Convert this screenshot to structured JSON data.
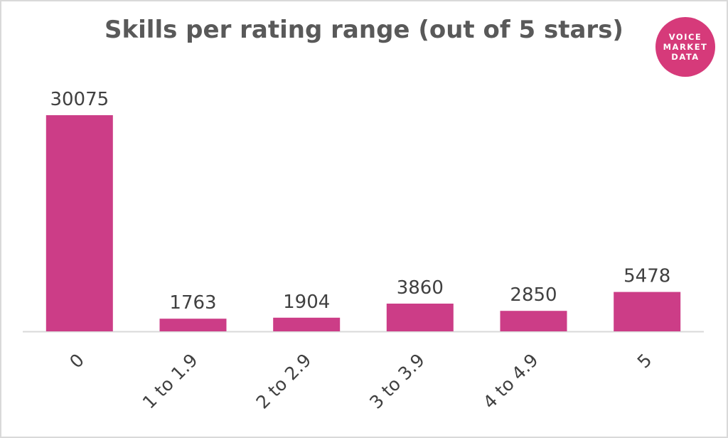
{
  "logo": {
    "line1": "VOICE",
    "line2": "MARKET",
    "line3": "DATA",
    "color": "#d63a7a"
  },
  "chart_data": {
    "type": "bar",
    "title": "Skills per rating range (out of 5 stars)",
    "categories": [
      "0",
      "1 to 1.9",
      "2 to 2.9",
      "3 to 3.9",
      "4 to 4.9",
      "5"
    ],
    "values": [
      30075,
      1763,
      1904,
      3860,
      2850,
      5478
    ],
    "data_labels": [
      "30075",
      "1763",
      "1904",
      "3860",
      "2850",
      "5478"
    ],
    "bar_color": "#cc3d87",
    "ylim": [
      0,
      30075
    ],
    "grid": false,
    "legend": "none",
    "xlabel": "",
    "ylabel": ""
  }
}
